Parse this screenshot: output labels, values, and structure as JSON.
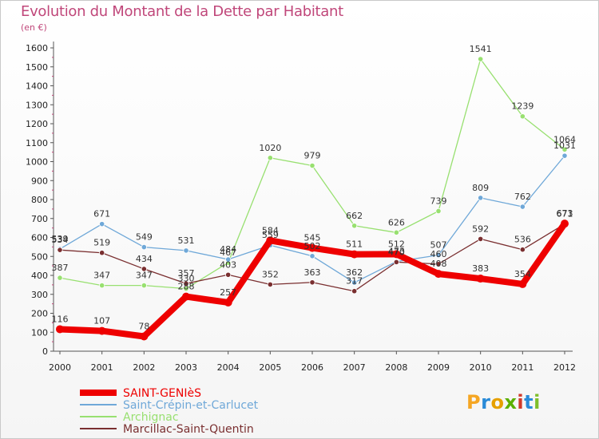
{
  "header": {
    "title": "Evolution du Montant de la Dette par Habitant",
    "subtitle": "(en €)"
  },
  "logo": {
    "letters": [
      "P",
      "r",
      "o",
      "x",
      "i",
      "t",
      "i"
    ],
    "colors": [
      "#f5a623",
      "#2a8bd8",
      "#e6a000",
      "#5bb000",
      "#d03a2a",
      "#2a8bd8",
      "#7fbf2a"
    ]
  },
  "chart_data": {
    "type": "line",
    "title": "Evolution du Montant de la Dette par Habitant",
    "ylabel": "(en €)",
    "x": [
      "2000",
      "2001",
      "2002",
      "2003",
      "2004",
      "2005",
      "2006",
      "2007",
      "2008",
      "2009",
      "2010",
      "2011",
      "2012"
    ],
    "ylim": [
      0,
      1600
    ],
    "yticks": [
      0,
      100,
      200,
      300,
      400,
      500,
      600,
      700,
      800,
      900,
      1000,
      1100,
      1200,
      1300,
      1400,
      1500,
      1600
    ],
    "grid": false,
    "legend_position": "bottom-left",
    "series": [
      {
        "name": "SAINT-GENIèS",
        "color": "#ee0000",
        "values": [
          116,
          107,
          78,
          288,
          257,
          584,
          545,
          511,
          512,
          408,
          383,
          354,
          673
        ]
      },
      {
        "name": "Saint-Crépin-et-Carlucet",
        "color": "#6fa8d8",
        "values": [
          539,
          671,
          549,
          531,
          484,
          559,
          502,
          362,
          473,
          507,
          809,
          762,
          1031
        ]
      },
      {
        "name": "Archignac",
        "color": "#98e070",
        "values": [
          387,
          347,
          347,
          330,
          467,
          1020,
          979,
          662,
          626,
          739,
          1541,
          1239,
          1064
        ]
      },
      {
        "name": "Marcillac-Saint-Quentin",
        "color": "#7a2f30",
        "values": [
          534,
          519,
          434,
          357,
          403,
          352,
          363,
          317,
          470,
          460,
          592,
          536,
          671
        ]
      }
    ]
  }
}
